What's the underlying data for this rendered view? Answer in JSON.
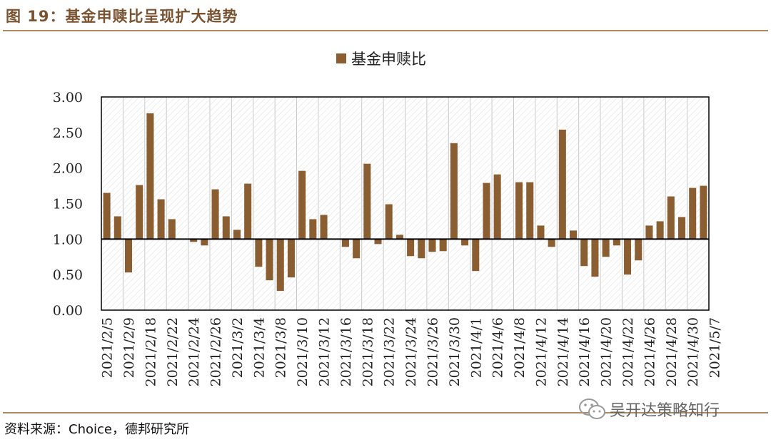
{
  "header": {
    "title": "图 19：基金申赎比呈现扩大趋势"
  },
  "footer": {
    "source": "资料来源：Choice，德邦研究所",
    "watermark": "吴开达策略知行"
  },
  "colors": {
    "bar": "#8b5e31",
    "title": "#7a5230",
    "rule": "#b08a63",
    "grid": "#c8c8c8"
  },
  "chart_data": {
    "type": "bar",
    "title": "",
    "xlabel": "",
    "ylabel": "",
    "baseline": 1.0,
    "ylim": [
      0,
      3
    ],
    "yticks": [
      "0.00",
      "0.50",
      "1.00",
      "1.50",
      "2.00",
      "2.50",
      "3.00"
    ],
    "legend": {
      "label": "基金申赎比",
      "position": "top-center"
    },
    "grid": "vertical-hatched",
    "x_tick_labels": [
      "2021/2/5",
      "2021/2/9",
      "2021/2/18",
      "2021/2/22",
      "2021/2/24",
      "2021/2/26",
      "2021/3/2",
      "2021/3/4",
      "2021/3/8",
      "2021/3/10",
      "2021/3/12",
      "2021/3/16",
      "2021/3/18",
      "2021/3/22",
      "2021/3/24",
      "2021/3/26",
      "2021/3/30",
      "2021/4/1",
      "2021/4/6",
      "2021/4/8",
      "2021/4/12",
      "2021/4/14",
      "2021/4/16",
      "2021/4/20",
      "2021/4/22",
      "2021/4/26",
      "2021/4/28",
      "2021/4/30",
      "2021/5/7"
    ],
    "values": [
      1.65,
      1.32,
      0.53,
      1.76,
      2.77,
      1.56,
      1.28,
      1.0,
      0.96,
      0.91,
      1.7,
      1.32,
      1.13,
      1.78,
      0.61,
      0.42,
      0.27,
      0.46,
      1.96,
      1.28,
      1.34,
      1.0,
      0.89,
      0.73,
      2.06,
      0.93,
      1.49,
      1.06,
      0.76,
      0.73,
      0.82,
      0.83,
      2.35,
      0.91,
      0.55,
      1.79,
      1.91,
      1.0,
      1.8,
      1.8,
      1.19,
      0.89,
      2.54,
      1.12,
      0.62,
      0.47,
      0.75,
      0.91,
      0.5,
      0.7,
      1.19,
      1.25,
      1.6,
      1.31,
      1.72,
      1.75
    ]
  }
}
